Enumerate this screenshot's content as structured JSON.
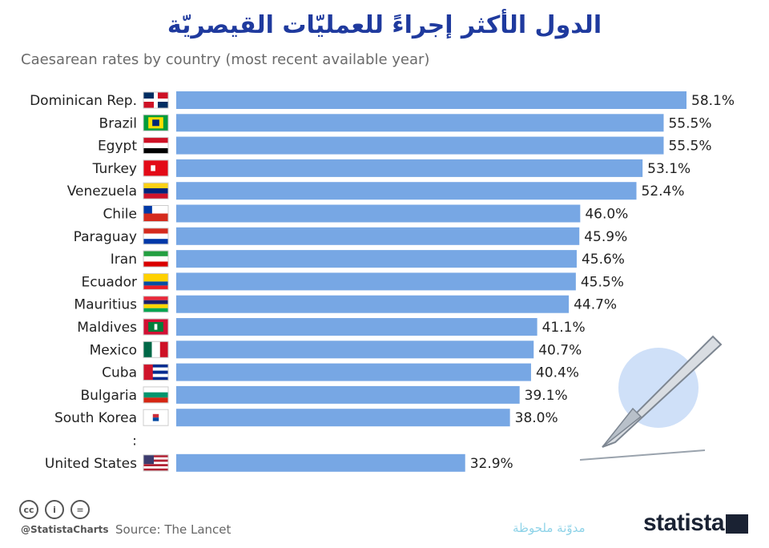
{
  "title_ar": "الدول الأكثر إجراءً للعمليّات القيصريّة",
  "chart_data": {
    "type": "bar",
    "orientation": "horizontal",
    "title": "Caesarean rates by country (most recent available year)",
    "categories": [
      "Dominican Rep.",
      "Brazil",
      "Egypt",
      "Turkey",
      "Venezuela",
      "Chile",
      "Paraguay",
      "Iran",
      "Ecuador",
      "Mauritius",
      "Maldives",
      "Mexico",
      "Cuba",
      "Bulgaria",
      "South Korea",
      "United States"
    ],
    "values": [
      58.1,
      55.5,
      55.5,
      53.1,
      52.4,
      46.0,
      45.9,
      45.6,
      45.5,
      44.7,
      41.1,
      40.7,
      40.4,
      39.1,
      38.0,
      32.9
    ],
    "value_labels": [
      "58.1%",
      "55.5%",
      "55.5%",
      "53.1%",
      "52.4%",
      "46.0%",
      "45.9%",
      "45.6%",
      "45.5%",
      "44.7%",
      "41.1%",
      "40.7%",
      "40.4%",
      "39.1%",
      "38.0%",
      "32.9%"
    ],
    "gap_marker": ":",
    "xlim": [
      0,
      65
    ],
    "bar_color": "#77a7e4",
    "grid": false,
    "legend": "none"
  },
  "footer": {
    "cc_icons": [
      "creative-commons-icon",
      "attribution-icon",
      "no-derivatives-icon"
    ],
    "cc_glyphs": [
      "cc",
      "i",
      "="
    ],
    "handle": "@StatistaCharts",
    "source": "Source: The Lancet",
    "watermark": "مدوّنة ملحوظة",
    "brand": "statista"
  }
}
